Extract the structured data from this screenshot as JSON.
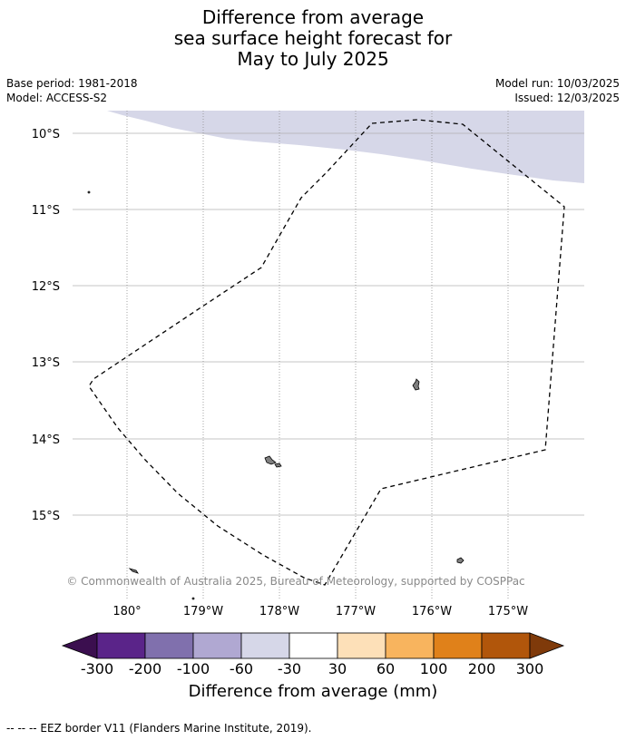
{
  "title": {
    "line1": "Difference from average",
    "line2": "sea surface height forecast for",
    "line3": "May to July 2025"
  },
  "meta": {
    "base_period": "Base period: 1981-2018",
    "model": "Model: ACCESS-S2",
    "model_run": "Model run: 10/03/2025",
    "issued": "Issued: 12/03/2025"
  },
  "map": {
    "lat_labels": [
      "10°S",
      "11°S",
      "12°S",
      "13°S",
      "14°S",
      "15°S"
    ],
    "lon_labels": [
      "180°",
      "179°W",
      "178°W",
      "177°W",
      "176°W",
      "175°W"
    ],
    "copyright": "© Commonwealth of Australia 2025, Bureau of Meteorology, supported by COSPPac",
    "anomaly_band_color": "#d6d7e8",
    "grid_color": "#b0b0b0",
    "land_color": "#808080"
  },
  "colorbar": {
    "label": "Difference from average (mm)",
    "tick_labels": [
      "-300",
      "-200",
      "-100",
      "-60",
      "-30",
      "30",
      "60",
      "100",
      "200",
      "300"
    ],
    "colors": [
      "#3b0f4f",
      "#5a2489",
      "#8070ad",
      "#b0a8d2",
      "#d6d7e8",
      "#ffffff",
      "#fde0b8",
      "#f8b45e",
      "#e0811a",
      "#b1560b",
      "#7f3a0a"
    ]
  },
  "footer": "-- -- -- EEZ border V11 (Flanders Marine Institute, 2019)."
}
